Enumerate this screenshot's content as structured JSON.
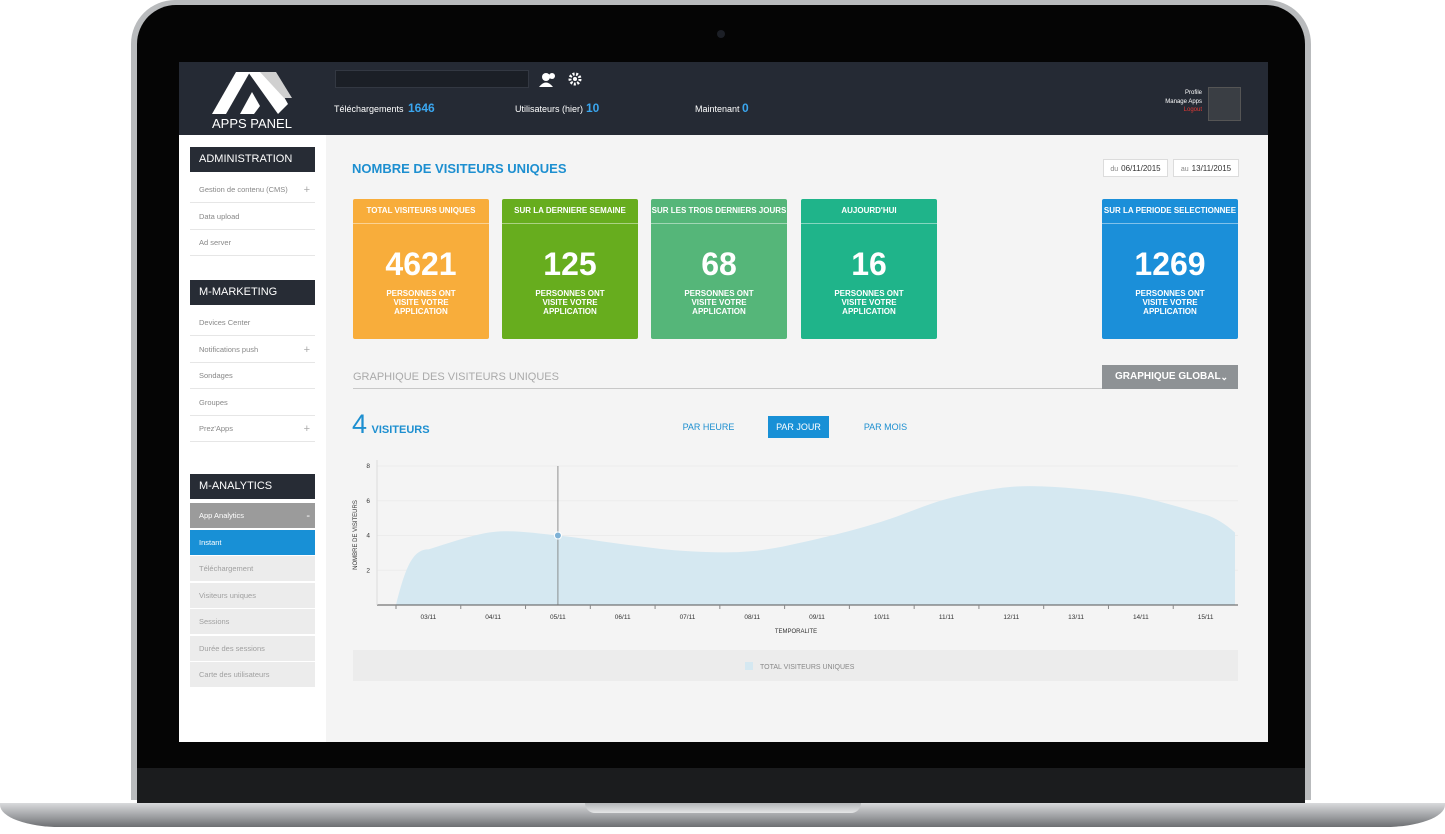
{
  "header": {
    "logo": "APPS PANEL",
    "stats": [
      {
        "label": "Téléchargements",
        "value": 1646
      },
      {
        "label": "Utilisateurs (hier)",
        "value": 10
      },
      {
        "label": "Maintenant",
        "value": 0
      }
    ],
    "profile": [
      "Profile",
      "Manage Apps",
      "Logout"
    ]
  },
  "sidebar": {
    "sections": [
      {
        "title": "ADMINISTRATION",
        "items": [
          {
            "label": "Gestion de contenu (CMS)",
            "expandable": true
          },
          {
            "label": "Data upload",
            "expandable": false
          },
          {
            "label": "Ad server",
            "expandable": false
          }
        ]
      },
      {
        "title": "M-MARKETING",
        "items": [
          {
            "label": "Devices Center",
            "expandable": false
          },
          {
            "label": "Notifications push",
            "expandable": true
          },
          {
            "label": "Sondages",
            "expandable": false
          },
          {
            "label": "Groupes",
            "expandable": false
          },
          {
            "label": "Prez'Apps",
            "expandable": true
          }
        ]
      },
      {
        "title": "M-ANALYTICS",
        "items": [
          {
            "label": "App Analytics",
            "expandable": false,
            "state": "open"
          },
          {
            "label": "Instant",
            "expandable": false,
            "state": "active"
          },
          {
            "label": "Téléchargement",
            "expandable": false,
            "state": "sub"
          },
          {
            "label": "Visiteurs uniques",
            "expandable": false,
            "state": "sub"
          },
          {
            "label": "Sessions",
            "expandable": false,
            "state": "sub"
          },
          {
            "label": "Durée des sessions",
            "expandable": false,
            "state": "sub"
          },
          {
            "label": "Carte des utilisateurs",
            "expandable": false,
            "state": "sub"
          }
        ]
      }
    ]
  },
  "main": {
    "title": "NOMBRE DE VISITEURS UNIQUES",
    "date_from": {
      "prefix": "du",
      "date": "06/11/2015"
    },
    "date_to": {
      "prefix": "au",
      "date": "13/11/2015"
    },
    "cards": [
      {
        "title": "TOTAL VISITEURS UNIQUES",
        "value": 4621,
        "caption": "PERSONNES ONT VISITE VOTRE APPLICATION",
        "color": "#f8ad3b"
      },
      {
        "title": "SUR LA DERNIERE SEMAINE",
        "value": 125,
        "caption": "PERSONNES ONT VISITE VOTRE APPLICATION",
        "color": "#67ad1e"
      },
      {
        "title": "SUR LES TROIS DERNIERS JOURS",
        "value": 68,
        "caption": "PERSONNES ONT VISITE VOTRE APPLICATION",
        "color": "#55b679"
      },
      {
        "title": "AUJOURD'HUI",
        "value": 16,
        "caption": "PERSONNES ONT VISITE VOTRE APPLICATION",
        "color": "#1fb48a"
      },
      {
        "title": "SUR LA PERIODE SELECTIONNEE",
        "value": 1269,
        "caption": "PERSONNES ONT VISITE VOTRE APPLICATION",
        "color": "#1b8fd9"
      }
    ],
    "section_title": "GRAPHIQUE DES VISITEURS UNIQUES",
    "view_select": "GRAPHIQUE GLOBAL",
    "unit_label": "VISITEURS",
    "tabs": [
      {
        "label": "PAR HEURE",
        "active": false
      },
      {
        "label": "PAR JOUR",
        "active": true
      },
      {
        "label": "PAR MOIS",
        "active": false
      }
    ],
    "chart": {
      "type": "area",
      "y_label": "NOMBRE DE VISITEURS",
      "x_label": "TEMPORALITE",
      "categories": [
        "03/11",
        "04/11",
        "05/11",
        "06/11",
        "07/11",
        "08/11",
        "09/11",
        "10/11",
        "11/11",
        "12/11",
        "13/11",
        "14/11",
        "15/11"
      ],
      "series": [
        {
          "name": "TOTAL VISITEURS UNIQUES",
          "color": "#d5e8f1",
          "values": [
            3.2,
            4.2,
            4,
            3.5,
            3.1,
            3.1,
            3.8,
            4.8,
            6.1,
            6.8,
            6.7,
            6.2,
            5.2
          ]
        }
      ],
      "ylim": [
        0,
        8
      ],
      "yticks": [
        2,
        4,
        6,
        8
      ],
      "grid": true,
      "selected_category": "05/11"
    }
  }
}
